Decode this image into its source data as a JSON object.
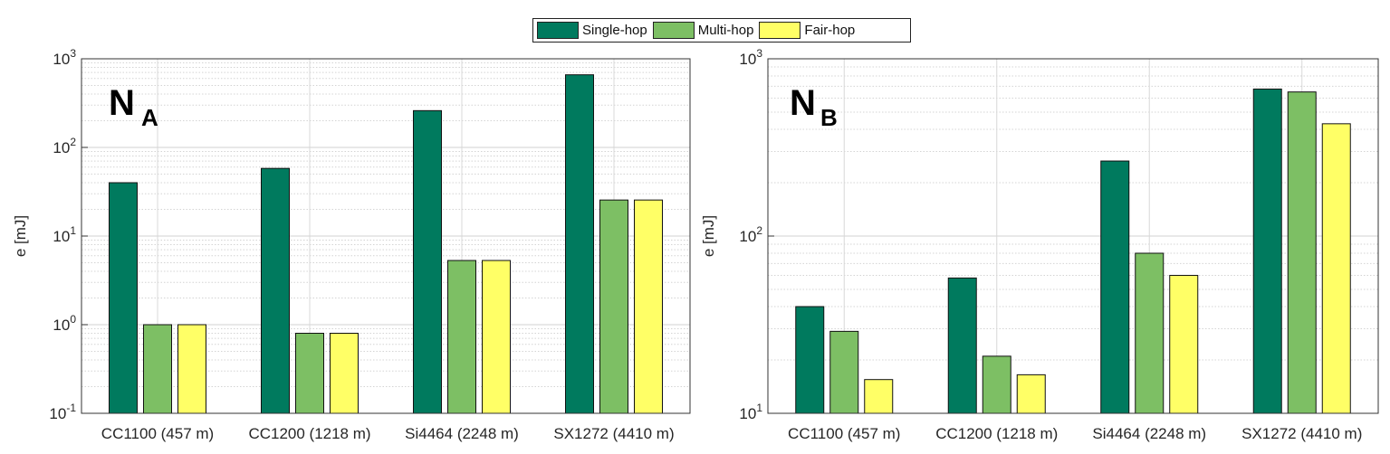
{
  "legend": [
    {
      "name": "Single-hop",
      "color": "#007a5e"
    },
    {
      "name": "Multi-hop",
      "color": "#7dbf64"
    },
    {
      "name": "Fair-hop",
      "color": "#ffff66"
    }
  ],
  "chart_data": [
    {
      "type": "bar",
      "scale": "log",
      "panel_label": {
        "main": "N",
        "sub": "A"
      },
      "ylabel": "e [mJ]",
      "xlabel": "",
      "ylim": [
        0.1,
        1000
      ],
      "grid": true,
      "categories": [
        "CC1100 (457 m)",
        "CC1200 (1218 m)",
        "Si4464 (2248 m)",
        "SX1272 (4410 m)"
      ],
      "series": [
        {
          "name": "Single-hop",
          "values": [
            40,
            58,
            260,
            660
          ]
        },
        {
          "name": "Multi-hop",
          "values": [
            1.0,
            0.8,
            5.3,
            25.5
          ]
        },
        {
          "name": "Fair-hop",
          "values": [
            1.0,
            0.8,
            5.3,
            25.5
          ]
        }
      ]
    },
    {
      "type": "bar",
      "scale": "log",
      "panel_label": {
        "main": "N",
        "sub": "B"
      },
      "ylabel": "e [mJ]",
      "xlabel": "",
      "ylim": [
        10,
        1000
      ],
      "grid": true,
      "categories": [
        "CC1100 (457 m)",
        "CC1200 (1218 m)",
        "Si4464 (2248 m)",
        "SX1272 (4410 m)"
      ],
      "series": [
        {
          "name": "Single-hop",
          "values": [
            40,
            58,
            265,
            675
          ]
        },
        {
          "name": "Multi-hop",
          "values": [
            29,
            21,
            80,
            650
          ]
        },
        {
          "name": "Fair-hop",
          "values": [
            15.5,
            16.5,
            60,
            430
          ]
        }
      ]
    }
  ]
}
